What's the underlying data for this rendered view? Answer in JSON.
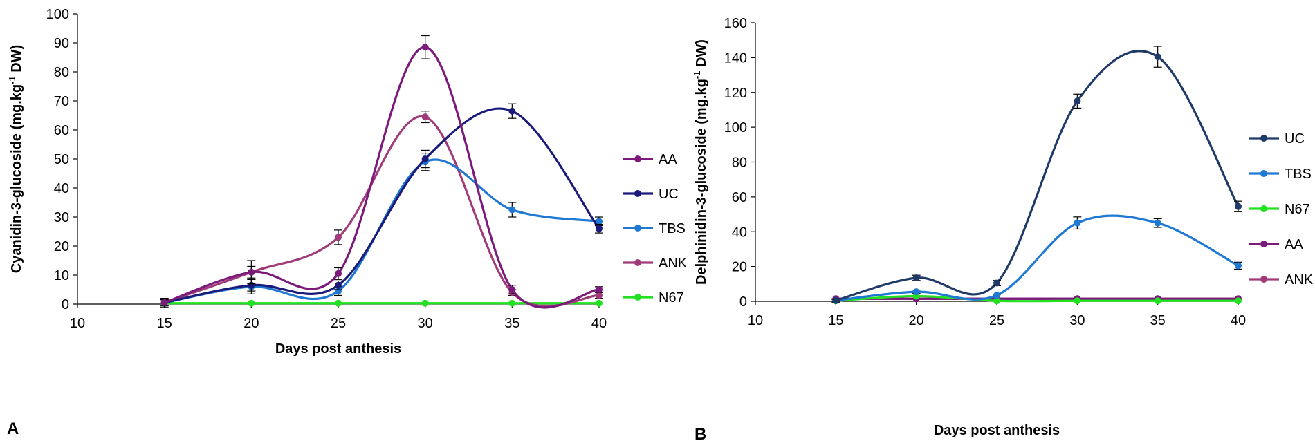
{
  "chart_data": [
    {
      "panel_label": "A",
      "type": "line",
      "xlabel": "Days post anthesis",
      "ylabel_main": "Cyanidin-3-glucoside (mg.kg",
      "ylabel_sup": "-1",
      "ylabel_end": " DW)",
      "x_ticks": [
        "10",
        "15",
        "20",
        "25",
        "30",
        "35",
        "40"
      ],
      "y_ticks": [
        "0",
        "10",
        "20",
        "30",
        "40",
        "50",
        "60",
        "70",
        "80",
        "90",
        "100"
      ],
      "xlim": [
        10,
        40
      ],
      "ylim": [
        0,
        100
      ],
      "x": [
        15,
        20,
        25,
        30,
        35,
        40
      ],
      "legend_position": "right",
      "series": [
        {
          "name": "AA",
          "color": "#7B1A7B",
          "values": [
            0.5,
            11.0,
            10.5,
            88.5,
            5.0,
            5.0
          ],
          "errors": [
            1.5,
            4.0,
            2.0,
            4.0,
            1.5,
            1.0
          ]
        },
        {
          "name": "UC",
          "color": "#1A1A7A",
          "values": [
            0.5,
            6.5,
            6.5,
            50.0,
            66.5,
            26.0
          ],
          "errors": [
            1.0,
            2.0,
            1.5,
            3.0,
            2.5,
            1.5
          ]
        },
        {
          "name": "TBS",
          "color": "#1F78D1",
          "values": [
            0.5,
            6.0,
            4.5,
            49.0,
            32.5,
            28.5
          ],
          "errors": [
            1.0,
            2.5,
            1.5,
            3.0,
            2.5,
            1.5
          ]
        },
        {
          "name": "ANK",
          "color": "#A03B7A",
          "values": [
            0.5,
            11.0,
            23.0,
            64.5,
            4.0,
            3.0
          ],
          "errors": [
            1.0,
            2.0,
            2.5,
            2.0,
            1.0,
            1.0
          ]
        },
        {
          "name": "N67",
          "color": "#22E022",
          "values": [
            0.3,
            0.3,
            0.3,
            0.3,
            0.3,
            0.3
          ],
          "errors": [
            0,
            0,
            0,
            0,
            0,
            0
          ]
        }
      ]
    },
    {
      "panel_label": "B",
      "type": "line",
      "xlabel": "Days post anthesis",
      "ylabel_main": "Delphinidin-3-glucoside (mg.kg",
      "ylabel_sup": "-1",
      "ylabel_end": " DW)",
      "x_ticks": [
        "10",
        "15",
        "20",
        "25",
        "30",
        "35",
        "40"
      ],
      "y_ticks": [
        "0",
        "20",
        "40",
        "60",
        "80",
        "100",
        "120",
        "140",
        "160"
      ],
      "xlim": [
        10,
        40
      ],
      "ylim": [
        0,
        160
      ],
      "x": [
        15,
        20,
        25,
        30,
        35,
        40
      ],
      "legend_position": "right",
      "series": [
        {
          "name": "UC",
          "color": "#1F3A68",
          "values": [
            0.5,
            13.5,
            10.5,
            115.0,
            140.5,
            54.5
          ],
          "errors": [
            1.0,
            1.5,
            1.5,
            4.0,
            6.0,
            3.0
          ]
        },
        {
          "name": "TBS",
          "color": "#1F78D1",
          "values": [
            0.5,
            5.5,
            3.5,
            45.0,
            45.0,
            20.5
          ],
          "errors": [
            0.5,
            1.0,
            0.5,
            3.5,
            2.5,
            2.0
          ]
        },
        {
          "name": "N67",
          "color": "#22E022",
          "values": [
            0.3,
            3.0,
            0.3,
            0.3,
            0.3,
            0.3
          ],
          "errors": [
            0,
            0,
            0,
            0,
            0,
            0
          ]
        },
        {
          "name": "AA",
          "color": "#7B1A7B",
          "values": [
            1.5,
            1.5,
            1.5,
            1.5,
            1.5,
            1.5
          ],
          "errors": [
            0,
            0,
            0,
            0,
            0,
            0
          ]
        },
        {
          "name": "ANK",
          "color": "#A03B7A",
          "values": [
            1.5,
            1.5,
            1.5,
            1.5,
            1.5,
            1.5
          ],
          "errors": [
            0,
            0,
            0,
            0,
            0,
            0
          ]
        }
      ]
    }
  ]
}
